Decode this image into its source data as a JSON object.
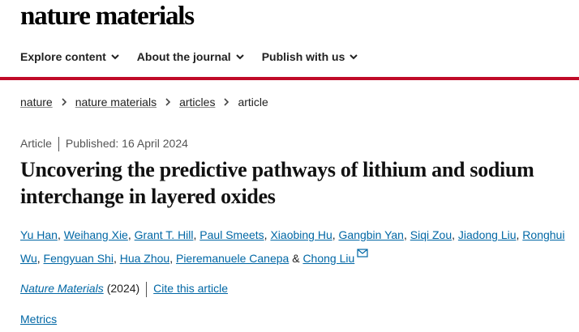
{
  "header": {
    "logo": "nature materials",
    "nav": [
      "Explore content",
      "About the journal",
      "Publish with us"
    ]
  },
  "breadcrumbs": [
    "nature",
    "nature materials",
    "articles",
    "article"
  ],
  "article": {
    "type": "Article",
    "published": "Published: 16 April 2024",
    "title": "Uncovering the predictive pathways of lithium and sodium interchange in layered oxides",
    "authors": [
      {
        "name": "Yu Han",
        "after": ","
      },
      {
        "name": "Weihang Xie",
        "after": ","
      },
      {
        "name": "Grant T. Hill",
        "after": ","
      },
      {
        "name": "Paul Smeets",
        "after": ","
      },
      {
        "name": "Xiaobing Hu",
        "after": ","
      },
      {
        "name": "Gangbin Yan",
        "after": ","
      },
      {
        "name": "Siqi Zou",
        "after": ","
      },
      {
        "name": "Jiadong Liu",
        "after": ","
      },
      {
        "name": "Ronghui Wu",
        "after": ","
      },
      {
        "name": "Fengyuan Shi",
        "after": ","
      },
      {
        "name": "Hua Zhou",
        "after": ","
      },
      {
        "name": "Pieremanuele Canepa",
        "after": "&"
      },
      {
        "name": "Chong Liu"
      }
    ],
    "journal": "Nature Materials",
    "year": "(2024)",
    "cite": "Cite this article",
    "metrics": "Metrics"
  }
}
